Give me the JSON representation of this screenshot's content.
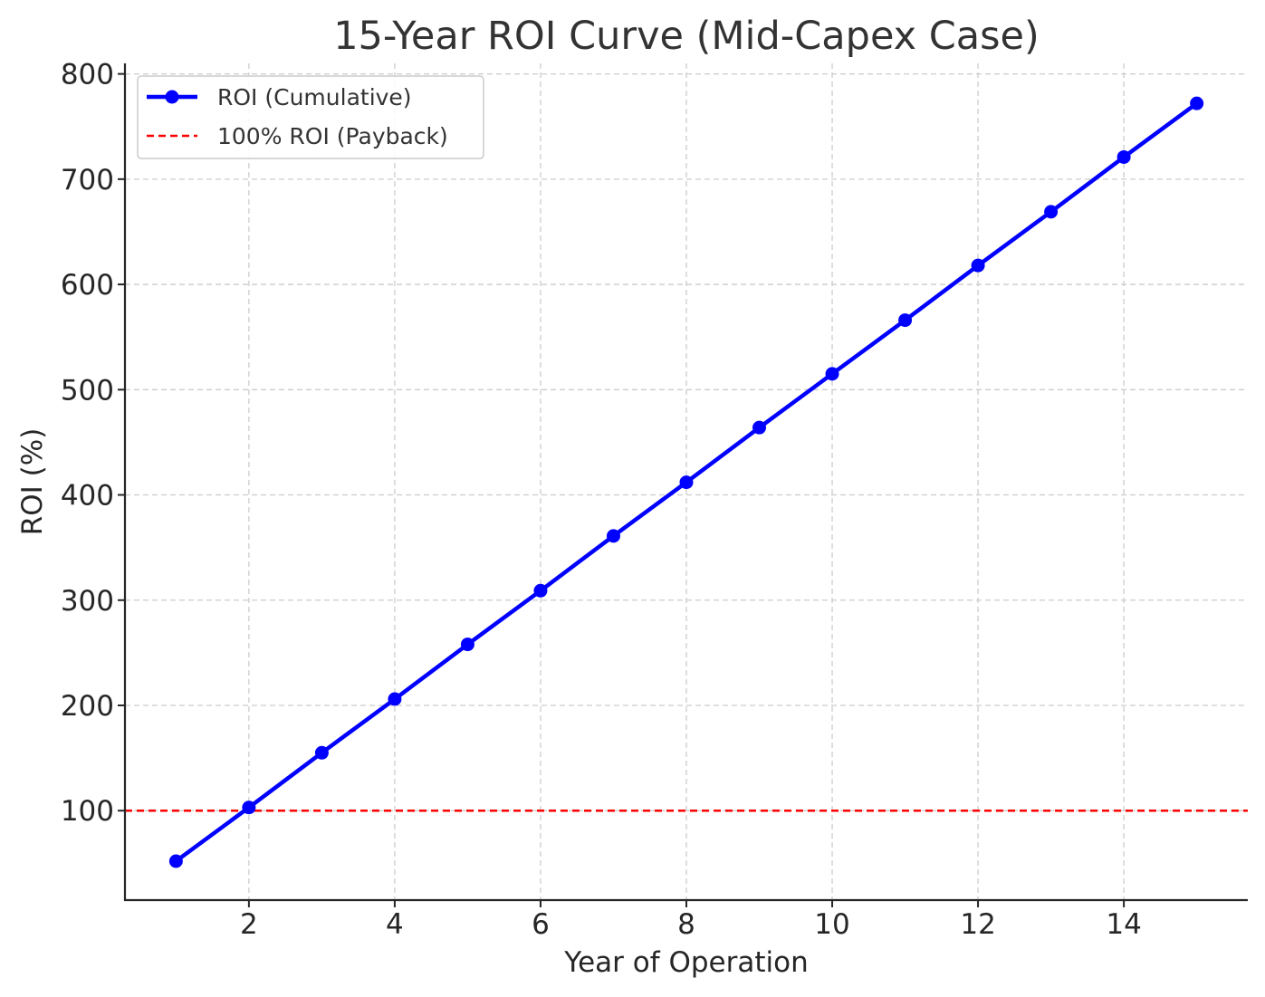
{
  "chart_data": {
    "type": "line",
    "title": "15-Year ROI Curve (Mid-Capex Case)",
    "xlabel": "Year of Operation",
    "ylabel": "ROI (%)",
    "xlim": [
      0.3,
      15.7
    ],
    "ylim": [
      15,
      810
    ],
    "xticks": [
      2,
      4,
      6,
      8,
      10,
      12,
      14
    ],
    "yticks": [
      100,
      200,
      300,
      400,
      500,
      600,
      700,
      800
    ],
    "grid": true,
    "legend_position": "top-left",
    "x": [
      1,
      2,
      3,
      4,
      5,
      6,
      7,
      8,
      9,
      10,
      11,
      12,
      13,
      14,
      15
    ],
    "series": [
      {
        "name": "ROI (Cumulative)",
        "color": "#0000ff",
        "marker": "circle",
        "style": "solid",
        "values": [
          52,
          103,
          155,
          206,
          258,
          309,
          361,
          412,
          464,
          515,
          566,
          618,
          669,
          721,
          772
        ]
      }
    ],
    "reference_lines": [
      {
        "name": "100% ROI (Payback)",
        "y": 100,
        "color": "#ff0000",
        "style": "dashed"
      }
    ]
  }
}
